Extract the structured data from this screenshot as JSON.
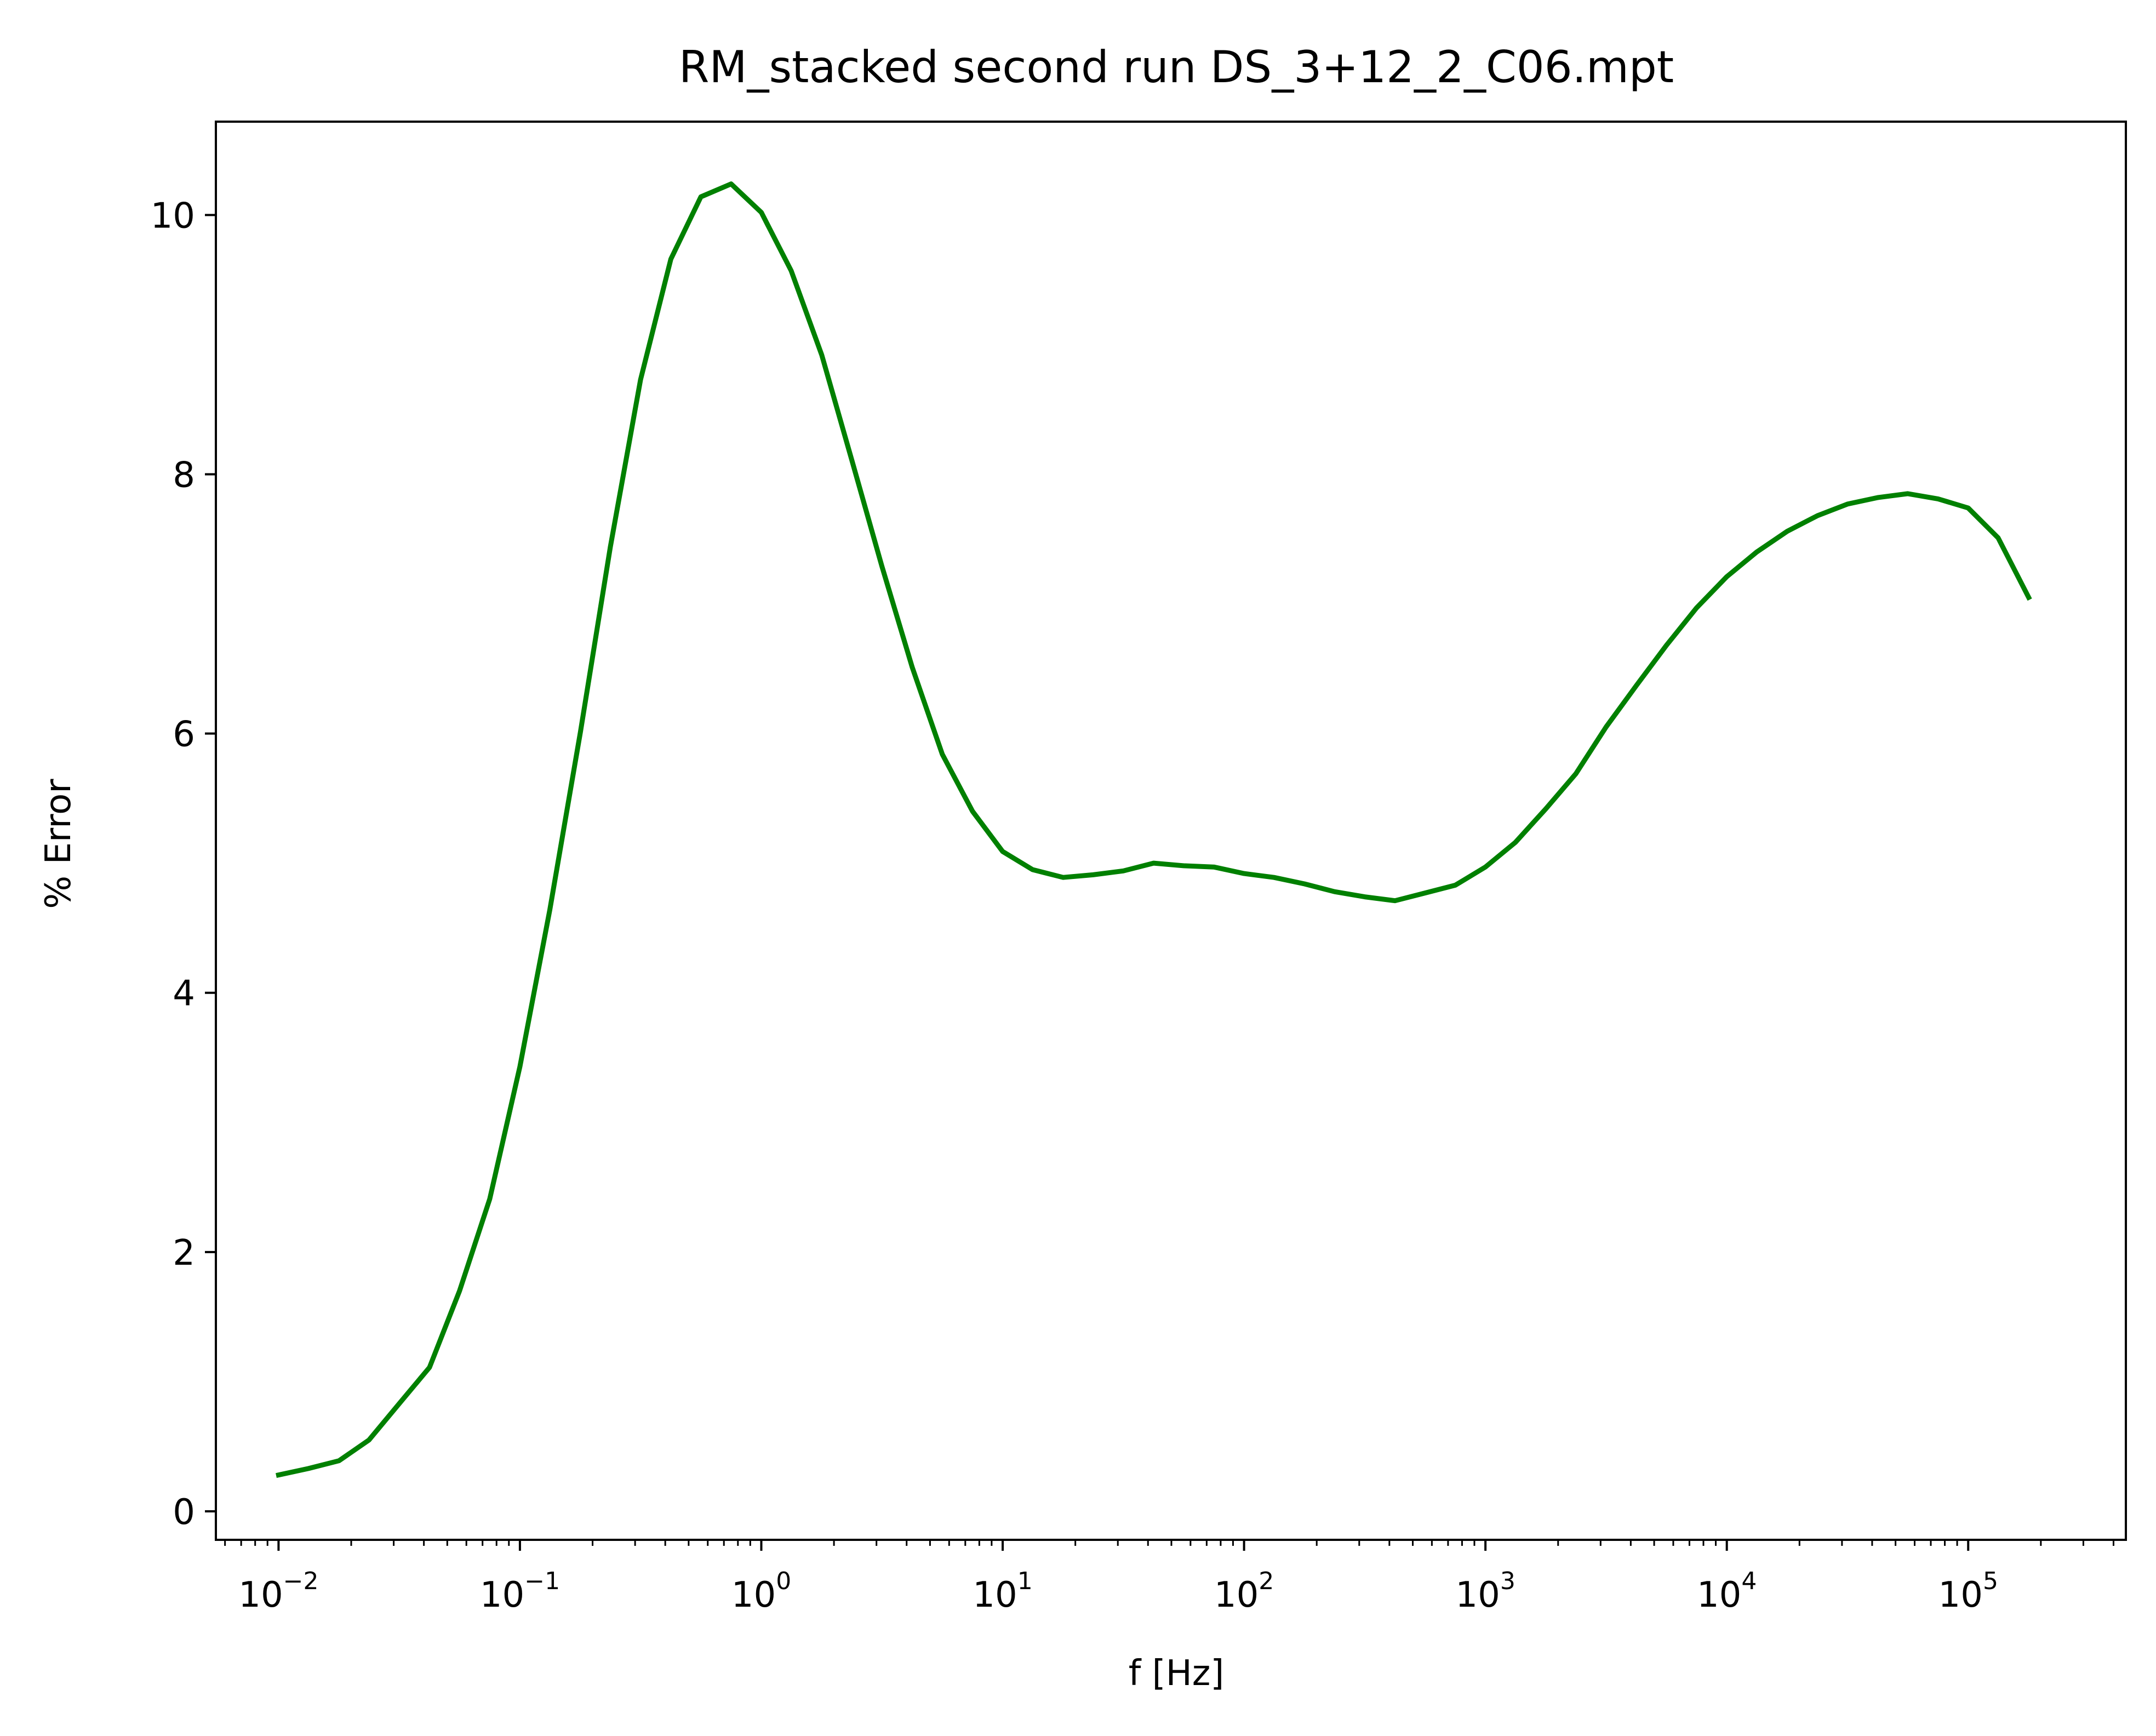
{
  "chart_data": {
    "type": "line",
    "title": "RM_stacked second run DS_3+12_2_C06.mpt",
    "xlabel": "f [Hz]",
    "ylabel": "% Error",
    "xscale": "log",
    "xlim": [
      0.0055,
      450000
    ],
    "ylim": [
      -0.22,
      10.72
    ],
    "grid": false,
    "line_color": "#008000",
    "x_ticks": [
      {
        "base": "10",
        "exp": "−2",
        "value": 0.01
      },
      {
        "base": "10",
        "exp": "−1",
        "value": 0.1
      },
      {
        "base": "10",
        "exp": "0",
        "value": 1
      },
      {
        "base": "10",
        "exp": "1",
        "value": 10
      },
      {
        "base": "10",
        "exp": "2",
        "value": 100
      },
      {
        "base": "10",
        "exp": "3",
        "value": 1000
      },
      {
        "base": "10",
        "exp": "4",
        "value": 10000
      },
      {
        "base": "10",
        "exp": "5",
        "value": 100000
      }
    ],
    "y_ticks": [
      {
        "label": "0",
        "value": 0
      },
      {
        "label": "2",
        "value": 2
      },
      {
        "label": "4",
        "value": 4
      },
      {
        "label": "6",
        "value": 6
      },
      {
        "label": "8",
        "value": 8
      },
      {
        "label": "10",
        "value": 10
      }
    ],
    "series": [
      {
        "x": [
          0.01,
          0.0133,
          0.0178,
          0.0237,
          0.0316,
          0.0422,
          0.0562,
          0.075,
          0.1,
          0.133,
          0.178,
          0.237,
          0.316,
          0.422,
          0.562,
          0.75,
          1.0,
          1.33,
          1.78,
          2.37,
          3.16,
          4.22,
          5.62,
          7.5,
          10,
          13.3,
          17.8,
          23.7,
          31.6,
          42.2,
          56.2,
          75,
          100,
          133,
          178,
          237,
          316,
          422,
          562,
          750,
          1000,
          1330,
          1780,
          2370,
          3160,
          4220,
          5620,
          7500,
          10000,
          13300,
          17800,
          23700,
          31600,
          42200,
          56200,
          75000,
          100000,
          133000,
          178000
        ],
        "y": [
          0.28,
          0.33,
          0.39,
          0.55,
          0.83,
          1.11,
          1.7,
          2.41,
          3.43,
          4.64,
          6.01,
          7.44,
          8.73,
          9.66,
          10.14,
          10.24,
          10.02,
          9.57,
          8.92,
          8.11,
          7.29,
          6.51,
          5.84,
          5.4,
          5.09,
          4.95,
          4.89,
          4.91,
          4.94,
          5.0,
          4.98,
          4.97,
          4.92,
          4.89,
          4.84,
          4.78,
          4.74,
          4.71,
          4.77,
          4.83,
          4.97,
          5.16,
          5.42,
          5.69,
          6.05,
          6.37,
          6.68,
          6.97,
          7.21,
          7.4,
          7.56,
          7.68,
          7.77,
          7.82,
          7.85,
          7.81,
          7.74,
          7.51,
          7.05
        ]
      }
    ]
  }
}
